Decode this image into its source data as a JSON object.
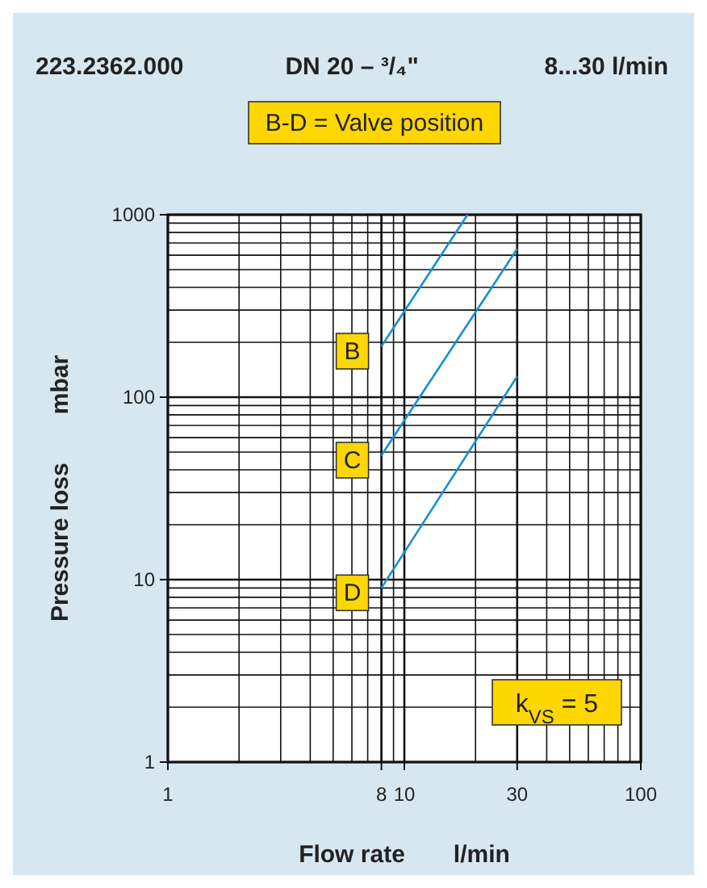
{
  "chart_data": {
    "type": "line",
    "title": "223.2362.000   DN 20 – ³/₄\"   8...30 l/min",
    "xlabel": "Flow rate   l/min",
    "ylabel": "Pressure loss   mbar",
    "log": "xy",
    "grid": true,
    "xlim": [
      1,
      100
    ],
    "ylim": [
      1,
      1000
    ],
    "xticks": [
      1,
      8,
      10,
      30,
      100
    ],
    "yticks": [
      1,
      10,
      100,
      1000
    ],
    "series": [
      {
        "name": "B",
        "color": "#1a8fd0",
        "x": [
          8,
          18.5
        ],
        "values": [
          190,
          1000
        ]
      },
      {
        "name": "C",
        "color": "#1a8fd0",
        "x": [
          8,
          30
        ],
        "values": [
          48,
          650
        ]
      },
      {
        "name": "D",
        "color": "#1a8fd0",
        "x": [
          8,
          30
        ],
        "values": [
          9,
          130
        ]
      }
    ],
    "annotations": [
      "B-D = Valve position",
      "k$_{VS}$ = 5"
    ]
  }
}
